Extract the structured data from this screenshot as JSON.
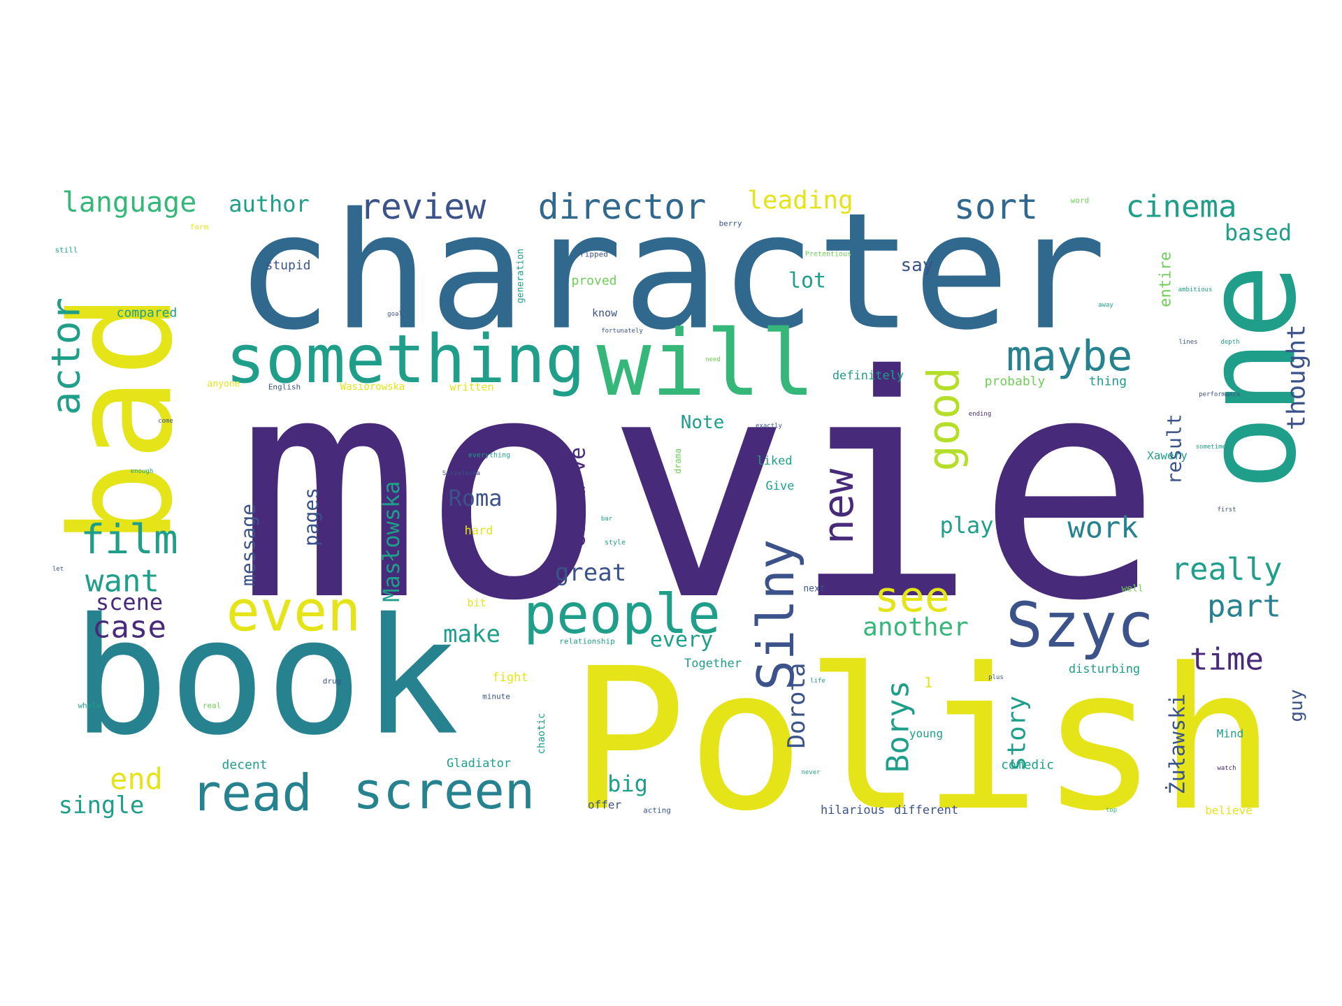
{
  "palette": {
    "purple": "#472a7a",
    "navy": "#3b528b",
    "steel": "#31688e",
    "teal": "#26828e",
    "green": "#1f9e89",
    "mint": "#35b779",
    "lime": "#6ece58",
    "chartreuse": "#b5de2b",
    "yellow": "#e4e419"
  },
  "words": [
    {
      "text": "movie",
      "color": "purple"
    },
    {
      "text": "Polish",
      "color": "yellow"
    },
    {
      "text": "book",
      "color": "teal"
    },
    {
      "text": "character",
      "color": "steel"
    },
    {
      "text": "bad",
      "color": "yellow"
    },
    {
      "text": "one",
      "color": "green"
    },
    {
      "text": "will",
      "color": "mint"
    },
    {
      "text": "something",
      "color": "green"
    },
    {
      "text": "people",
      "color": "green"
    },
    {
      "text": "even",
      "color": "yellow"
    },
    {
      "text": "read",
      "color": "teal"
    },
    {
      "text": "screen",
      "color": "teal"
    },
    {
      "text": "Szyc",
      "color": "navy"
    },
    {
      "text": "Silny",
      "color": "navy"
    },
    {
      "text": "new",
      "color": "purple"
    },
    {
      "text": "good",
      "color": "chartreuse"
    },
    {
      "text": "maybe",
      "color": "teal"
    },
    {
      "text": "actor",
      "color": "green"
    },
    {
      "text": "film",
      "color": "green"
    },
    {
      "text": "see",
      "color": "yellow"
    },
    {
      "text": "review",
      "color": "navy"
    },
    {
      "text": "director",
      "color": "steel"
    },
    {
      "text": "sort",
      "color": "steel"
    },
    {
      "text": "cinema",
      "color": "green"
    },
    {
      "text": "language",
      "color": "mint"
    },
    {
      "text": "author",
      "color": "green"
    },
    {
      "text": "leading",
      "color": "yellow"
    },
    {
      "text": "want",
      "color": "green"
    },
    {
      "text": "case",
      "color": "purple"
    },
    {
      "text": "scene",
      "color": "purple"
    },
    {
      "text": "end",
      "color": "yellow"
    },
    {
      "text": "single",
      "color": "green"
    },
    {
      "text": "really",
      "color": "green"
    },
    {
      "text": "part",
      "color": "teal"
    },
    {
      "text": "time",
      "color": "purple"
    },
    {
      "text": "work",
      "color": "teal"
    },
    {
      "text": "play",
      "color": "green"
    },
    {
      "text": "Borys",
      "color": "green"
    },
    {
      "text": "story",
      "color": "green"
    },
    {
      "text": "Dorota",
      "color": "navy"
    },
    {
      "text": "Żuławski",
      "color": "navy"
    },
    {
      "text": "Masłowska",
      "color": "green"
    },
    {
      "text": "message",
      "color": "navy"
    },
    {
      "text": "pages",
      "color": "navy"
    },
    {
      "text": "Roma",
      "color": "navy"
    },
    {
      "text": "could've",
      "color": "purple"
    },
    {
      "text": "great",
      "color": "navy"
    },
    {
      "text": "make",
      "color": "green"
    },
    {
      "text": "every",
      "color": "green"
    },
    {
      "text": "another",
      "color": "mint"
    },
    {
      "text": "big",
      "color": "green"
    },
    {
      "text": "thought",
      "color": "navy"
    },
    {
      "text": "result",
      "color": "navy"
    },
    {
      "text": "based",
      "color": "green"
    },
    {
      "text": "entire",
      "color": "lime"
    },
    {
      "text": "guy",
      "color": "navy"
    },
    {
      "text": "lot",
      "color": "green"
    },
    {
      "text": "say",
      "color": "navy"
    },
    {
      "text": "Note",
      "color": "green"
    },
    {
      "text": "stupid",
      "color": "navy"
    },
    {
      "text": "compared",
      "color": "green"
    },
    {
      "text": "proved",
      "color": "lime"
    },
    {
      "text": "definitely",
      "color": "green"
    },
    {
      "text": "probably",
      "color": "lime"
    },
    {
      "text": "thing",
      "color": "green"
    },
    {
      "text": "Xawery",
      "color": "green"
    },
    {
      "text": "Give",
      "color": "green"
    },
    {
      "text": "liked",
      "color": "green"
    },
    {
      "text": "hard",
      "color": "yellow"
    },
    {
      "text": "bit",
      "color": "yellow"
    },
    {
      "text": "Together",
      "color": "green"
    },
    {
      "text": "fight",
      "color": "yellow"
    },
    {
      "text": "decent",
      "color": "green"
    },
    {
      "text": "Gladiator",
      "color": "green"
    },
    {
      "text": "chaotic",
      "color": "green"
    },
    {
      "text": "comedic",
      "color": "green"
    },
    {
      "text": "disturbing",
      "color": "green"
    },
    {
      "text": "hilarious",
      "color": "navy"
    },
    {
      "text": "different",
      "color": "navy"
    },
    {
      "text": "offer",
      "color": "navy"
    },
    {
      "text": "young",
      "color": "green"
    },
    {
      "text": "Mind",
      "color": "green"
    },
    {
      "text": "believe",
      "color": "yellow"
    },
    {
      "text": "generation",
      "color": "green"
    },
    {
      "text": "anyone",
      "color": "yellow"
    },
    {
      "text": "written",
      "color": "yellow"
    },
    {
      "text": "Wasiorowska",
      "color": "yellow"
    },
    {
      "text": "English",
      "color": "navy"
    },
    {
      "text": "know",
      "color": "navy"
    },
    {
      "text": "drama",
      "color": "lime"
    },
    {
      "text": "next",
      "color": "navy"
    },
    {
      "text": "well",
      "color": "lime"
    },
    {
      "text": "relationship",
      "color": "green"
    },
    {
      "text": "minute",
      "color": "navy"
    },
    {
      "text": "whole",
      "color": "green"
    },
    {
      "text": "real",
      "color": "lime"
    },
    {
      "text": "drug",
      "color": "navy"
    },
    {
      "text": "acting",
      "color": "navy"
    },
    {
      "text": "still",
      "color": "green"
    },
    {
      "text": "form",
      "color": "yellow"
    },
    {
      "text": "word",
      "color": "lime"
    },
    {
      "text": "berry",
      "color": "navy"
    },
    {
      "text": "ripped",
      "color": "navy"
    },
    {
      "text": "Pretentious",
      "color": "lime"
    },
    {
      "text": "ambitious",
      "color": "green"
    },
    {
      "text": "away",
      "color": "green"
    },
    {
      "text": "lines",
      "color": "navy"
    },
    {
      "text": "depth",
      "color": "green"
    },
    {
      "text": "performance",
      "color": "navy"
    },
    {
      "text": "ending",
      "color": "purple"
    },
    {
      "text": "sometimes",
      "color": "green"
    },
    {
      "text": "first",
      "color": "navy"
    },
    {
      "text": "exactly",
      "color": "navy"
    },
    {
      "text": "everything",
      "color": "green"
    },
    {
      "text": "Strzelecka",
      "color": "navy"
    },
    {
      "text": "style",
      "color": "green"
    },
    {
      "text": "bar",
      "color": "green"
    },
    {
      "text": "life",
      "color": "green"
    },
    {
      "text": "plus",
      "color": "navy"
    },
    {
      "text": "never",
      "color": "green"
    },
    {
      "text": "watch",
      "color": "purple"
    },
    {
      "text": "top",
      "color": "mint"
    },
    {
      "text": "need",
      "color": "lime"
    },
    {
      "text": "goal",
      "color": "navy"
    },
    {
      "text": "come",
      "color": "navy"
    },
    {
      "text": "enough",
      "color": "green"
    },
    {
      "text": "let",
      "color": "navy"
    },
    {
      "text": "fortunately",
      "color": "navy"
    },
    {
      "text": "1",
      "color": "yellow"
    }
  ]
}
